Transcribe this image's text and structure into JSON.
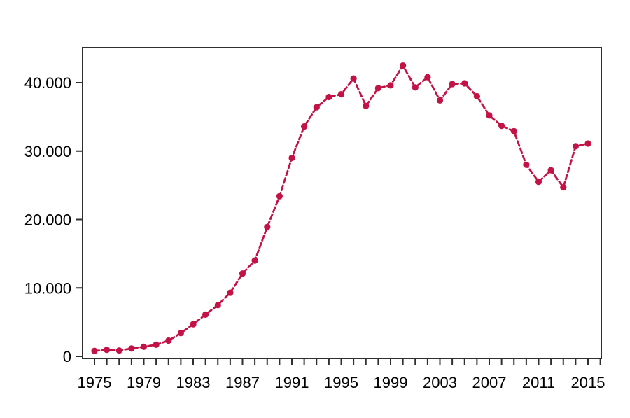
{
  "window": {
    "background": "#ffffff"
  },
  "chart_data": {
    "type": "line",
    "title": "",
    "xlabel": "",
    "ylabel": "",
    "legend": "none",
    "grid": false,
    "frame": "full-box",
    "line_style": "dashed",
    "marker": "filled-circle",
    "line_color": "#C31246",
    "axis_color": "#2F2F2F",
    "label_color": "#000000",
    "x": [
      1975,
      1976,
      1977,
      1978,
      1979,
      1980,
      1981,
      1982,
      1983,
      1984,
      1985,
      1986,
      1987,
      1988,
      1989,
      1990,
      1991,
      1992,
      1993,
      1994,
      1995,
      1996,
      1997,
      1998,
      1999,
      2000,
      2001,
      2002,
      2003,
      2004,
      2005,
      2006,
      2007,
      2008,
      2009,
      2010,
      2011,
      2012,
      2013,
      2014,
      2015
    ],
    "values": [
      800,
      950,
      850,
      1150,
      1400,
      1700,
      2300,
      3400,
      4700,
      6100,
      7500,
      9300,
      12100,
      14000,
      18900,
      23400,
      29000,
      33600,
      36400,
      37900,
      38300,
      40600,
      36600,
      39200,
      39600,
      42500,
      39300,
      40800,
      37400,
      39800,
      39900,
      38000,
      35200,
      33700,
      32900,
      28000,
      25500,
      27200,
      24700,
      30700,
      31100
    ],
    "xlim": [
      1974,
      2016.2
    ],
    "ylim": [
      0,
      45100
    ],
    "x_tick_every_year": true,
    "x_tick_label_years": [
      1975,
      1979,
      1983,
      1987,
      1991,
      1995,
      1999,
      2003,
      2007,
      2011,
      2015
    ],
    "x_tick_labels": [
      "1975",
      "1979",
      "1983",
      "1987",
      "1991",
      "1995",
      "1999",
      "2003",
      "2007",
      "2011",
      "2015"
    ],
    "y_tick_values": [
      0,
      10000,
      20000,
      30000,
      40000
    ],
    "y_tick_labels": [
      "0",
      "10.000",
      "20.000",
      "30.000",
      "40.000"
    ],
    "number_format": "thousands-dot-separator"
  }
}
